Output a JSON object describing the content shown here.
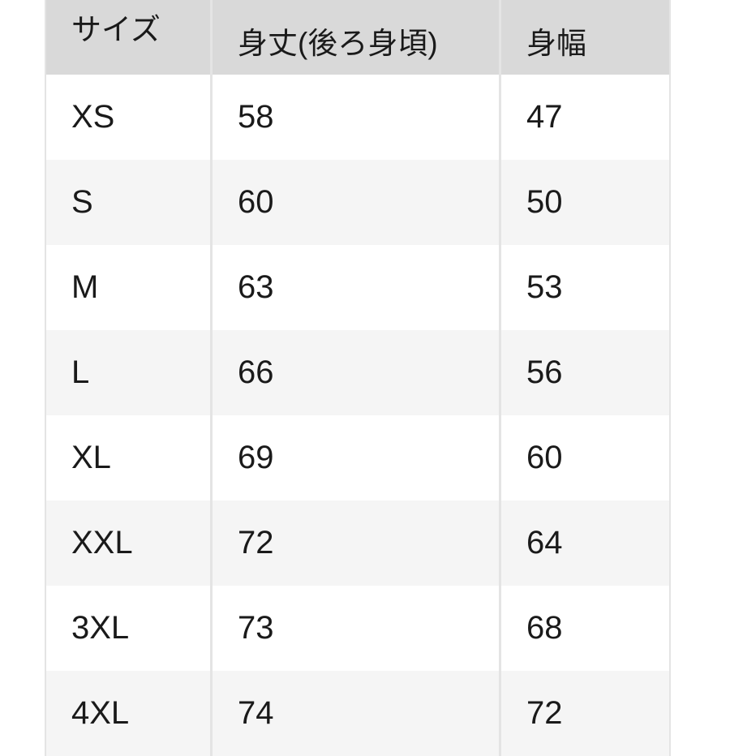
{
  "table": {
    "headers": [
      "サイズ",
      "身丈(後ろ身頃)",
      "身幅"
    ],
    "rows": [
      [
        "XS",
        "58",
        "47"
      ],
      [
        "S",
        "60",
        "50"
      ],
      [
        "M",
        "63",
        "53"
      ],
      [
        "L",
        "66",
        "56"
      ],
      [
        "XL",
        "69",
        "60"
      ],
      [
        "XXL",
        "72",
        "64"
      ],
      [
        "3XL",
        "73",
        "68"
      ],
      [
        "4XL",
        "74",
        "72"
      ]
    ]
  },
  "colors": {
    "header_bg": "#d9d9d9",
    "alt_row_bg": "#f5f5f5",
    "border": "#e4e4e4"
  }
}
